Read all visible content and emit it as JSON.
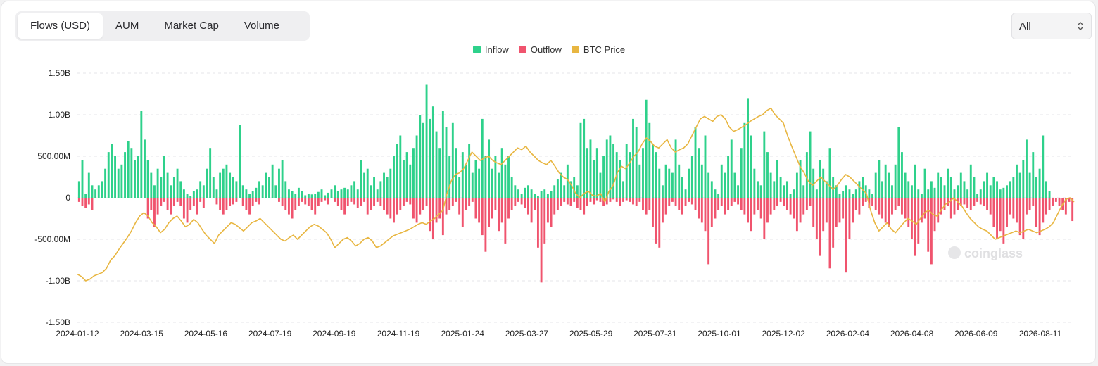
{
  "tabs": [
    {
      "label": "Flows (USD)",
      "active": true
    },
    {
      "label": "AUM",
      "active": false
    },
    {
      "label": "Market Cap",
      "active": false
    },
    {
      "label": "Volume",
      "active": false
    }
  ],
  "range_select": {
    "value": "All"
  },
  "watermark": "coinglass",
  "colors": {
    "inflow": "#2ed18b",
    "outflow": "#f0546e",
    "price": "#e8b641",
    "grid": "#e5e6ea",
    "axis_text": "#222222"
  },
  "chart_data": {
    "type": "bar",
    "title": "",
    "legend": {
      "placement": "top-center",
      "entries": [
        "Inflow",
        "Outflow",
        "BTC Price"
      ]
    },
    "y_axis": {
      "ticks": [
        "1.50B",
        "1.00B",
        "500.00M",
        "0",
        "-500.00M",
        "-1.00B",
        "-1.50B"
      ],
      "tick_values": [
        1.5,
        1.0,
        0.5,
        0,
        -0.5,
        -1.0,
        -1.5
      ],
      "ylim": [
        -1.5,
        1.5
      ],
      "unit": "B USD",
      "grid": true
    },
    "x_axis": {
      "ticks": [
        "2024-01-12",
        "2024-03-15",
        "2024-05-16",
        "2024-07-19",
        "2024-09-19",
        "2024-11-19",
        "2025-01-24",
        "2025-03-27",
        "2025-05-29",
        "2025-07-31",
        "2025-10-01",
        "2025-12-02",
        "2026-02-04",
        "2026-04-08",
        "2026-06-09",
        "2026-08-11"
      ]
    },
    "series": [
      {
        "name": "Inflow",
        "values": [
          0.2,
          0.45,
          0.05,
          0.3,
          0.15,
          0.1,
          0.15,
          0.2,
          0.35,
          0.55,
          0.65,
          0.5,
          0.35,
          0.4,
          0.55,
          0.68,
          0.6,
          0.45,
          0.5,
          1.05,
          0.7,
          0.45,
          0.3,
          0.15,
          0.35,
          0.25,
          0.5,
          0.3,
          0.15,
          0.25,
          0.35,
          0.2,
          0.1,
          0.05,
          0.02,
          0.08,
          0.1,
          0.2,
          0.15,
          0.35,
          0.6,
          0.25,
          0.1,
          0.3,
          0.35,
          0.4,
          0.3,
          0.25,
          0.2,
          0.88,
          0.15,
          0.1,
          0.05,
          0.08,
          0.12,
          0.2,
          0.15,
          0.3,
          0.25,
          0.4,
          0.15,
          0.35,
          0.45,
          0.2,
          0.1,
          0.08,
          0.05,
          0.12,
          0.08,
          0.03,
          0.05,
          0.04,
          0.05,
          0.07,
          0.1,
          0.03,
          0.06,
          0.1,
          0.15,
          0.08,
          0.1,
          0.12,
          0.1,
          0.15,
          0.2,
          0.1,
          0.45,
          0.3,
          0.35,
          0.15,
          0.25,
          0.1,
          0.2,
          0.3,
          0.25,
          0.35,
          0.5,
          0.65,
          0.75,
          0.45,
          0.55,
          0.4,
          0.6,
          0.75,
          1.0,
          0.9,
          1.36,
          0.95,
          1.1,
          0.8,
          0.6,
          1.05,
          0.85,
          0.5,
          0.9,
          0.6,
          0.25,
          0.55,
          0.4,
          0.65,
          0.3,
          0.45,
          0.35,
          0.95,
          0.5,
          0.7,
          0.35,
          0.5,
          0.3,
          0.6,
          0.4,
          0.5,
          0.25,
          0.15,
          0.1,
          0.05,
          0.12,
          0.15,
          0.1,
          0.05,
          0.02,
          0.08,
          0.1,
          0.05,
          0.08,
          0.15,
          0.22,
          0.3,
          0.15,
          0.4,
          0.2,
          0.25,
          0.15,
          0.9,
          0.95,
          0.6,
          0.7,
          0.45,
          0.6,
          0.3,
          0.5,
          0.7,
          0.75,
          0.65,
          0.55,
          0.45,
          0.2,
          0.65,
          0.55,
          0.95,
          0.85,
          0.4,
          0.6,
          1.18,
          0.9,
          0.65,
          0.55,
          0.35,
          0.15,
          0.4,
          0.35,
          0.3,
          0.7,
          0.4,
          0.25,
          0.1,
          0.35,
          0.5,
          0.85,
          0.6,
          0.4,
          0.75,
          0.3,
          0.2,
          0.1,
          0.05,
          0.4,
          0.3,
          0.5,
          0.7,
          0.3,
          0.15,
          0.6,
          0.9,
          1.2,
          0.75,
          0.35,
          0.2,
          0.15,
          0.8,
          0.55,
          0.3,
          0.2,
          0.45,
          0.25,
          0.15,
          0.2,
          0.05,
          0.1,
          0.3,
          0.45,
          0.15,
          0.55,
          0.8,
          0.35,
          0.1,
          0.45,
          0.35,
          0.2,
          0.6,
          0.25,
          0.15,
          0.05,
          0.08,
          0.15,
          0.1,
          0.05,
          0.1,
          0.2,
          0.25,
          0.15,
          0.1,
          0.05,
          0.3,
          0.45,
          0.2,
          0.4,
          0.3,
          0.15,
          0.4,
          0.85,
          0.55,
          0.3,
          0.2,
          0.15,
          0.4,
          0.1,
          0.05,
          0.35,
          0.1,
          0.2,
          0.12,
          0.3,
          0.25,
          0.15,
          0.35,
          0.25,
          0.1,
          0.15,
          0.3,
          0.2,
          0.1,
          0.4,
          0.25,
          0.05,
          0.1,
          0.2,
          0.3,
          0.15,
          0.25,
          0.2,
          0.1,
          0.12,
          0.15,
          0.2,
          0.25,
          0.4,
          0.3,
          0.45,
          0.7,
          0.3,
          0.55,
          0.25,
          0.35,
          0.75,
          0.2,
          0.08
        ]
      },
      {
        "name": "Outflow",
        "values": [
          -0.05,
          -0.1,
          -0.12,
          -0.08,
          -0.15,
          0,
          0,
          0,
          0,
          0,
          0,
          0,
          0,
          0,
          0,
          0,
          0,
          0,
          0,
          0,
          0,
          -0.25,
          -0.15,
          -0.35,
          -0.2,
          -0.1,
          -0.05,
          -0.15,
          -0.2,
          -0.1,
          -0.05,
          -0.1,
          -0.25,
          -0.3,
          -0.15,
          -0.1,
          -0.2,
          -0.05,
          -0.12,
          0,
          0,
          0,
          -0.08,
          -0.15,
          -0.2,
          -0.15,
          -0.1,
          -0.08,
          -0.05,
          0,
          -0.1,
          -0.15,
          -0.2,
          -0.1,
          -0.05,
          -0.08,
          0,
          0,
          0,
          0,
          0,
          -0.05,
          -0.1,
          -0.15,
          -0.2,
          -0.25,
          -0.15,
          -0.1,
          -0.05,
          -0.08,
          -0.1,
          -0.15,
          -0.2,
          -0.1,
          -0.05,
          -0.03,
          -0.08,
          0,
          -0.05,
          -0.1,
          -0.15,
          -0.2,
          -0.1,
          -0.05,
          -0.08,
          -0.12,
          -0.1,
          -0.05,
          -0.2,
          -0.15,
          -0.1,
          -0.05,
          -0.1,
          -0.15,
          -0.2,
          -0.25,
          -0.3,
          -0.2,
          -0.15,
          -0.1,
          -0.05,
          -0.08,
          -0.25,
          -0.3,
          -0.2,
          -0.15,
          -0.1,
          -0.4,
          -0.5,
          -0.3,
          -0.25,
          -0.45,
          -0.2,
          -0.15,
          -0.1,
          -0.05,
          -0.2,
          -0.35,
          -0.15,
          -0.1,
          -0.05,
          -0.25,
          -0.3,
          -0.45,
          -0.65,
          -0.35,
          -0.25,
          -0.15,
          -0.4,
          -0.3,
          -0.55,
          -0.25,
          -0.15,
          -0.1,
          -0.05,
          -0.08,
          -0.12,
          -0.2,
          -0.3,
          -0.15,
          -0.6,
          -1.02,
          -0.55,
          -0.3,
          -0.35,
          -0.2,
          -0.15,
          -0.1,
          -0.05,
          -0.08,
          -0.1,
          -0.05,
          -0.12,
          -0.15,
          -0.2,
          -0.1,
          -0.05,
          -0.08,
          -0.03,
          -0.05,
          -0.1,
          -0.08,
          -0.05,
          -0.02,
          -0.05,
          -0.1,
          -0.05,
          -0.03,
          -0.05,
          -0.08,
          -0.1,
          -0.05,
          -0.15,
          -0.2,
          -0.15,
          -0.35,
          -0.55,
          -0.6,
          -0.3,
          -0.2,
          -0.1,
          -0.05,
          -0.1,
          -0.15,
          -0.2,
          -0.1,
          -0.05,
          -0.08,
          -0.15,
          -0.25,
          -0.3,
          -0.4,
          -0.8,
          -0.35,
          -0.25,
          -0.15,
          -0.1,
          -0.2,
          -0.15,
          -0.1,
          -0.05,
          -0.08,
          -0.15,
          -0.2,
          -0.3,
          -0.4,
          -0.2,
          -0.15,
          -0.25,
          -0.5,
          -0.3,
          -0.2,
          -0.15,
          -0.1,
          -0.05,
          -0.1,
          -0.15,
          -0.2,
          -0.25,
          -0.4,
          -0.3,
          -0.2,
          -0.15,
          -0.1,
          -0.35,
          -0.5,
          -0.7,
          -0.4,
          -0.3,
          -0.85,
          -0.6,
          -0.35,
          -0.3,
          -0.25,
          -0.9,
          -0.5,
          -0.3,
          -0.15,
          -0.2,
          -0.1,
          -0.05,
          -0.12,
          -0.1,
          -0.15,
          -0.2,
          -0.25,
          -0.3,
          -0.35,
          -0.2,
          -0.15,
          -0.1,
          -0.2,
          -0.25,
          -0.35,
          -0.5,
          -0.7,
          -0.55,
          -0.3,
          -0.25,
          -0.65,
          -0.8,
          -0.4,
          -0.3,
          -0.2,
          -0.15,
          -0.1,
          -0.25,
          -0.2,
          -0.15,
          -0.1,
          -0.08,
          -0.12,
          -0.15,
          -0.1,
          -0.05,
          -0.08,
          -0.1,
          -0.15,
          -0.2,
          -0.35,
          -0.5,
          -0.4,
          -0.55,
          -0.35,
          -0.2,
          -0.25,
          -0.3,
          -0.45,
          -0.5,
          -0.2,
          -0.15,
          -0.1,
          -0.35,
          -0.45,
          -0.3,
          -0.2,
          -0.15,
          -0.1,
          -0.05,
          -0.1,
          -0.15,
          -0.2,
          -0.05,
          -0.28
        ]
      },
      {
        "name": "BTC Price",
        "axis_hidden": true,
        "values": [
          -0.92,
          -0.95,
          -1.0,
          -0.98,
          -0.94,
          -0.92,
          -0.9,
          -0.85,
          -0.75,
          -0.7,
          -0.62,
          -0.55,
          -0.48,
          -0.4,
          -0.3,
          -0.22,
          -0.18,
          -0.22,
          -0.3,
          -0.35,
          -0.42,
          -0.38,
          -0.3,
          -0.25,
          -0.22,
          -0.28,
          -0.35,
          -0.32,
          -0.26,
          -0.3,
          -0.38,
          -0.45,
          -0.5,
          -0.55,
          -0.45,
          -0.4,
          -0.35,
          -0.3,
          -0.32,
          -0.36,
          -0.4,
          -0.35,
          -0.3,
          -0.28,
          -0.25,
          -0.3,
          -0.35,
          -0.4,
          -0.45,
          -0.5,
          -0.52,
          -0.48,
          -0.45,
          -0.5,
          -0.45,
          -0.4,
          -0.35,
          -0.32,
          -0.34,
          -0.38,
          -0.42,
          -0.5,
          -0.6,
          -0.55,
          -0.5,
          -0.48,
          -0.52,
          -0.58,
          -0.55,
          -0.5,
          -0.48,
          -0.52,
          -0.6,
          -0.58,
          -0.54,
          -0.5,
          -0.46,
          -0.44,
          -0.42,
          -0.4,
          -0.38,
          -0.35,
          -0.32,
          -0.3,
          -0.32,
          -0.28,
          -0.25,
          -0.2,
          -0.15,
          0.05,
          0.2,
          0.28,
          0.3,
          0.35,
          0.45,
          0.55,
          0.5,
          0.45,
          0.48,
          0.5,
          0.45,
          0.42,
          0.4,
          0.45,
          0.5,
          0.55,
          0.6,
          0.58,
          0.62,
          0.55,
          0.5,
          0.45,
          0.42,
          0.4,
          0.45,
          0.38,
          0.3,
          0.25,
          0.22,
          0.15,
          0.05,
          0.0,
          0.05,
          0.08,
          0.03,
          0.02,
          0.05,
          -0.05,
          0.08,
          0.15,
          0.3,
          0.38,
          0.35,
          0.42,
          0.5,
          0.55,
          0.65,
          0.72,
          0.68,
          0.62,
          0.6,
          0.65,
          0.7,
          0.6,
          0.55,
          0.58,
          0.6,
          0.65,
          0.75,
          0.85,
          0.95,
          0.98,
          0.95,
          0.92,
          0.98,
          1.0,
          0.95,
          0.85,
          0.8,
          0.82,
          0.85,
          0.88,
          0.92,
          0.95,
          0.98,
          1.0,
          1.05,
          1.08,
          1.0,
          0.95,
          0.9,
          0.75,
          0.62,
          0.5,
          0.38,
          0.3,
          0.2,
          0.15,
          0.2,
          0.25,
          0.2,
          0.15,
          0.1,
          0.15,
          0.22,
          0.28,
          0.25,
          0.2,
          0.15,
          0.1,
          0.05,
          -0.15,
          -0.3,
          -0.4,
          -0.35,
          -0.3,
          -0.38,
          -0.42,
          -0.36,
          -0.3,
          -0.25,
          -0.28,
          -0.32,
          -0.25,
          -0.18,
          -0.15,
          -0.2,
          -0.22,
          -0.15,
          -0.08,
          -0.05,
          0.0,
          -0.05,
          -0.1,
          -0.18,
          -0.25,
          -0.3,
          -0.35,
          -0.38,
          -0.4,
          -0.45,
          -0.5,
          -0.48,
          -0.46,
          -0.44,
          -0.42,
          -0.4,
          -0.42,
          -0.4,
          -0.38,
          -0.4,
          -0.42,
          -0.4,
          -0.38,
          -0.35,
          -0.3,
          -0.2,
          -0.1,
          -0.02,
          0.0,
          -0.05
        ]
      }
    ]
  }
}
